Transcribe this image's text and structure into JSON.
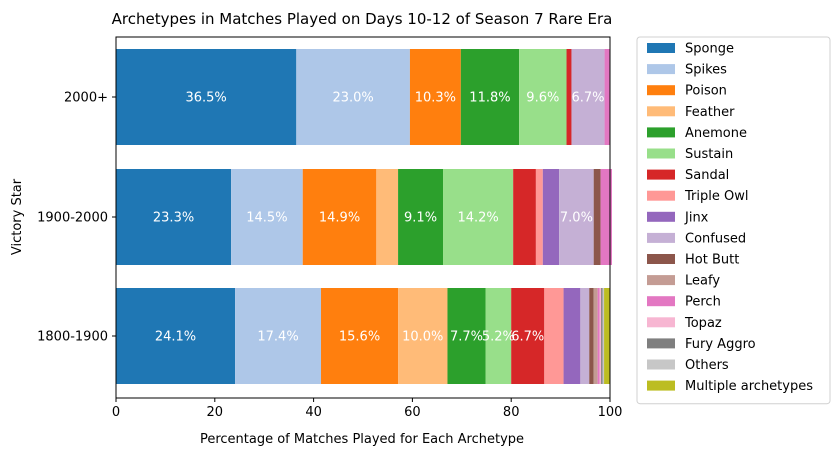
{
  "chart_data": {
    "type": "bar",
    "orientation": "horizontal",
    "stacked": true,
    "title": "Archetypes in Matches Played on Days 10-12 of Season 7 Rare Era",
    "xlabel": "Percentage of Matches Played for Each Archetype",
    "ylabel": "Victory Star",
    "xlim": [
      0,
      100
    ],
    "xticks": [
      "0",
      "20",
      "40",
      "60",
      "80",
      "100"
    ],
    "xtick_values": [
      0,
      20,
      40,
      60,
      80,
      100
    ],
    "categories": [
      "2000+",
      "1900-2000",
      "1800-1900"
    ],
    "grid": false,
    "legend_position": "outside-right",
    "series": [
      {
        "name": "Sponge",
        "color": "#1f77b4",
        "values": [
          36.5,
          23.3,
          24.1
        ],
        "labels": [
          "36.5%",
          "23.3%",
          "24.1%"
        ]
      },
      {
        "name": "Spikes",
        "color": "#aec7e8",
        "values": [
          23.0,
          14.5,
          17.4
        ],
        "labels": [
          "23.0%",
          "14.5%",
          "17.4%"
        ]
      },
      {
        "name": "Poison",
        "color": "#ff7f0e",
        "values": [
          10.3,
          14.9,
          15.6
        ],
        "labels": [
          "10.3%",
          "14.9%",
          "15.6%"
        ]
      },
      {
        "name": "Feather",
        "color": "#ffbb78",
        "values": [
          0,
          4.4,
          10.0
        ],
        "labels": [
          "",
          "",
          "10.0%"
        ]
      },
      {
        "name": "Anemone",
        "color": "#2ca02c",
        "values": [
          11.8,
          9.1,
          7.7
        ],
        "labels": [
          "11.8%",
          "9.1%",
          "7.7%"
        ]
      },
      {
        "name": "Sustain",
        "color": "#98df8a",
        "values": [
          9.6,
          14.2,
          5.2
        ],
        "labels": [
          "9.6%",
          "14.2%",
          "5.2%"
        ]
      },
      {
        "name": "Sandal",
        "color": "#d62728",
        "values": [
          1.0,
          4.6,
          6.7
        ],
        "labels": [
          "",
          "",
          "6.7%"
        ]
      },
      {
        "name": "Triple Owl",
        "color": "#ff9896",
        "values": [
          0,
          1.4,
          3.9
        ],
        "labels": [
          "",
          "",
          ""
        ]
      },
      {
        "name": "Jinx",
        "color": "#9467bd",
        "values": [
          0,
          3.3,
          3.4
        ],
        "labels": [
          "",
          "",
          ""
        ]
      },
      {
        "name": "Confused",
        "color": "#c5b0d5",
        "values": [
          6.7,
          7.0,
          1.8
        ],
        "labels": [
          "6.7%",
          "7.0%",
          ""
        ]
      },
      {
        "name": "Hot Butt",
        "color": "#8c564b",
        "values": [
          0,
          1.4,
          0.9
        ],
        "labels": [
          "",
          "",
          ""
        ]
      },
      {
        "name": "Leafy",
        "color": "#c49c94",
        "values": [
          0,
          0,
          0.8
        ],
        "labels": [
          "",
          "",
          ""
        ]
      },
      {
        "name": "Perch",
        "color": "#e377c2",
        "values": [
          1.1,
          2.3,
          0.4
        ],
        "labels": [
          "",
          "",
          ""
        ]
      },
      {
        "name": "Topaz",
        "color": "#f7b6d2",
        "values": [
          0,
          0,
          0.3
        ],
        "labels": [
          "",
          "",
          ""
        ]
      },
      {
        "name": "Fury Aggro",
        "color": "#7f7f7f",
        "values": [
          0,
          0,
          0.3
        ],
        "labels": [
          "",
          "",
          ""
        ]
      },
      {
        "name": "Others",
        "color": "#c7c7c7",
        "values": [
          0,
          0,
          0.3
        ],
        "labels": [
          "",
          "",
          ""
        ]
      },
      {
        "name": "Multiple archetypes",
        "color": "#bcbd22",
        "values": [
          0,
          0,
          1.2
        ],
        "labels": [
          "",
          "",
          ""
        ]
      }
    ]
  }
}
